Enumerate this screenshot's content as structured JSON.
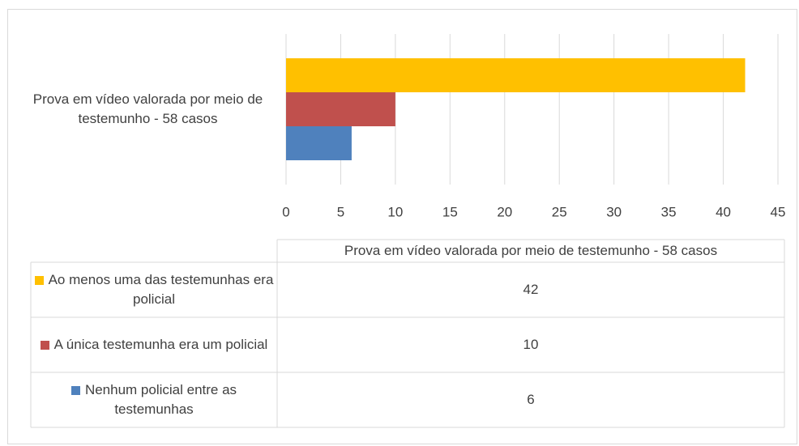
{
  "chart_data": {
    "type": "bar",
    "orientation": "horizontal",
    "categories": [
      "Prova em vídeo valorada por meio de testemunho - 58 casos"
    ],
    "series": [
      {
        "name": "Ao menos uma das testemunhas era policial",
        "color": "#FFC000",
        "values": [
          42
        ]
      },
      {
        "name": "A única testemunha era um policial",
        "color": "#C0504D",
        "values": [
          10
        ]
      },
      {
        "name": "Nenhum policial entre as testemunhas",
        "color": "#4F81BD",
        "values": [
          6
        ]
      }
    ],
    "xlim": [
      0,
      45
    ],
    "xticks": [
      0,
      5,
      10,
      15,
      20,
      25,
      30,
      35,
      40,
      45
    ],
    "grid": true,
    "data_table": true
  }
}
